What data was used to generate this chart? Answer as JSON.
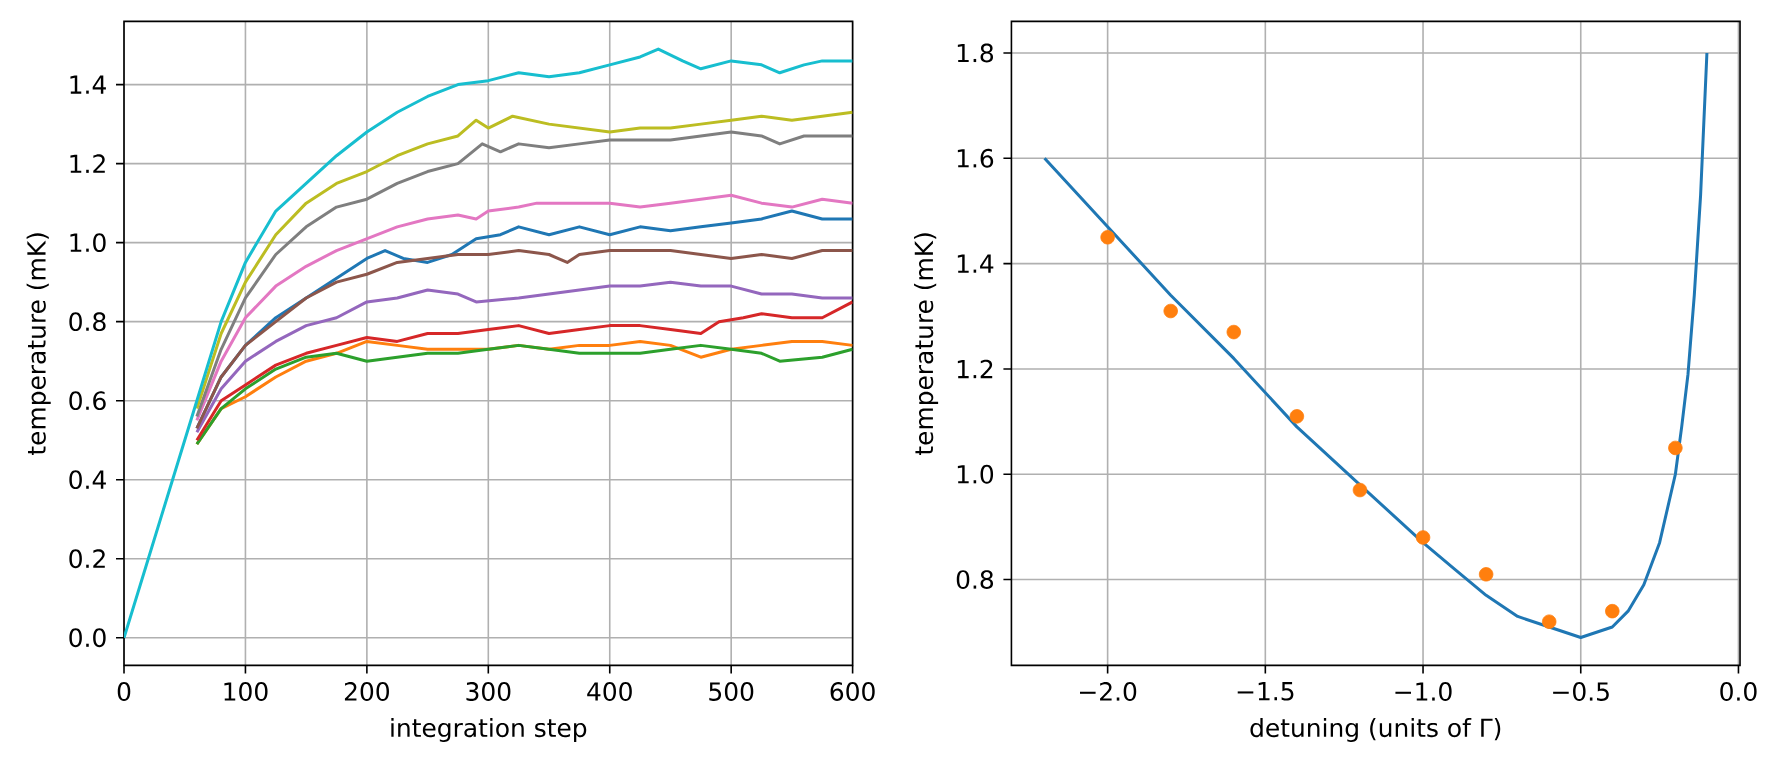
{
  "chart_data": [
    {
      "type": "line",
      "xlabel": "integration step",
      "ylabel": "temperature (mK)",
      "xlim": [
        0,
        600
      ],
      "ylim": [
        -0.07,
        1.56
      ],
      "grid": true,
      "xticks": [
        0,
        100,
        200,
        300,
        400,
        500,
        600
      ],
      "yticks": [
        {
          "value": 0,
          "label": "0.0"
        },
        {
          "value": 0.2,
          "label": "0.2"
        },
        {
          "value": 0.4,
          "label": "0.4"
        },
        {
          "value": 0.6,
          "label": "0.6"
        },
        {
          "value": 0.8,
          "label": "0.8"
        },
        {
          "value": 1.0,
          "label": "1.0"
        },
        {
          "value": 1.2,
          "label": "1.2"
        },
        {
          "value": 1.4,
          "label": "1.4"
        }
      ],
      "series": [
        {
          "color": "#1f77b4",
          "x": [
            60,
            80,
            100,
            125,
            150,
            175,
            200,
            215,
            230,
            250,
            270,
            290,
            310,
            325,
            350,
            375,
            400,
            425,
            450,
            475,
            500,
            525,
            550,
            575,
            600
          ],
          "values": [
            0.53,
            0.66,
            0.74,
            0.81,
            0.86,
            0.91,
            0.96,
            0.98,
            0.96,
            0.95,
            0.97,
            1.01,
            1.02,
            1.04,
            1.02,
            1.04,
            1.02,
            1.04,
            1.03,
            1.04,
            1.05,
            1.06,
            1.08,
            1.06,
            1.06
          ]
        },
        {
          "color": "#ff7f0e",
          "x": [
            60,
            80,
            100,
            125,
            150,
            175,
            200,
            225,
            250,
            275,
            300,
            325,
            350,
            375,
            400,
            425,
            450,
            475,
            500,
            525,
            550,
            575,
            600
          ],
          "values": [
            0.49,
            0.58,
            0.61,
            0.66,
            0.7,
            0.72,
            0.75,
            0.74,
            0.73,
            0.73,
            0.73,
            0.74,
            0.73,
            0.74,
            0.74,
            0.75,
            0.74,
            0.71,
            0.73,
            0.74,
            0.75,
            0.75,
            0.74
          ]
        },
        {
          "color": "#2ca02c",
          "x": [
            60,
            80,
            100,
            125,
            150,
            175,
            200,
            225,
            250,
            275,
            300,
            325,
            350,
            375,
            400,
            425,
            450,
            475,
            500,
            525,
            540,
            575,
            600
          ],
          "values": [
            0.49,
            0.58,
            0.63,
            0.68,
            0.71,
            0.72,
            0.7,
            0.71,
            0.72,
            0.72,
            0.73,
            0.74,
            0.73,
            0.72,
            0.72,
            0.72,
            0.73,
            0.74,
            0.73,
            0.72,
            0.7,
            0.71,
            0.73
          ]
        },
        {
          "color": "#d62728",
          "x": [
            60,
            80,
            100,
            125,
            150,
            175,
            200,
            225,
            250,
            275,
            300,
            325,
            350,
            375,
            400,
            425,
            450,
            475,
            490,
            510,
            525,
            550,
            575,
            600
          ],
          "values": [
            0.5,
            0.6,
            0.64,
            0.69,
            0.72,
            0.74,
            0.76,
            0.75,
            0.77,
            0.77,
            0.78,
            0.79,
            0.77,
            0.78,
            0.79,
            0.79,
            0.78,
            0.77,
            0.8,
            0.81,
            0.82,
            0.81,
            0.81,
            0.85
          ]
        },
        {
          "color": "#9467bd",
          "x": [
            60,
            80,
            100,
            125,
            150,
            175,
            200,
            225,
            250,
            275,
            290,
            325,
            350,
            375,
            400,
            425,
            450,
            475,
            500,
            525,
            550,
            575,
            600
          ],
          "values": [
            0.52,
            0.63,
            0.7,
            0.75,
            0.79,
            0.81,
            0.85,
            0.86,
            0.88,
            0.87,
            0.85,
            0.86,
            0.87,
            0.88,
            0.89,
            0.89,
            0.9,
            0.89,
            0.89,
            0.87,
            0.87,
            0.86,
            0.86
          ]
        },
        {
          "color": "#8c564b",
          "x": [
            60,
            80,
            100,
            125,
            150,
            175,
            200,
            225,
            250,
            275,
            300,
            325,
            350,
            365,
            375,
            400,
            425,
            450,
            475,
            500,
            525,
            550,
            575,
            600
          ],
          "values": [
            0.53,
            0.66,
            0.74,
            0.8,
            0.86,
            0.9,
            0.92,
            0.95,
            0.96,
            0.97,
            0.97,
            0.98,
            0.97,
            0.95,
            0.97,
            0.98,
            0.98,
            0.98,
            0.97,
            0.96,
            0.97,
            0.96,
            0.98,
            0.98
          ]
        },
        {
          "color": "#e377c2",
          "x": [
            60,
            80,
            100,
            125,
            150,
            175,
            200,
            225,
            250,
            275,
            290,
            300,
            325,
            340,
            375,
            400,
            425,
            450,
            475,
            500,
            525,
            550,
            575,
            600
          ],
          "values": [
            0.55,
            0.7,
            0.81,
            0.89,
            0.94,
            0.98,
            1.01,
            1.04,
            1.06,
            1.07,
            1.06,
            1.08,
            1.09,
            1.1,
            1.1,
            1.1,
            1.09,
            1.1,
            1.11,
            1.12,
            1.1,
            1.09,
            1.11,
            1.1
          ]
        },
        {
          "color": "#7f7f7f",
          "x": [
            60,
            80,
            100,
            125,
            150,
            175,
            200,
            225,
            250,
            275,
            295,
            310,
            325,
            350,
            375,
            400,
            425,
            450,
            475,
            500,
            525,
            540,
            560,
            600
          ],
          "values": [
            0.56,
            0.73,
            0.86,
            0.97,
            1.04,
            1.09,
            1.11,
            1.15,
            1.18,
            1.2,
            1.25,
            1.23,
            1.25,
            1.24,
            1.25,
            1.26,
            1.26,
            1.26,
            1.27,
            1.28,
            1.27,
            1.25,
            1.27,
            1.27
          ]
        },
        {
          "color": "#bcbd22",
          "x": [
            60,
            80,
            100,
            125,
            150,
            175,
            200,
            225,
            250,
            275,
            290,
            300,
            320,
            350,
            375,
            400,
            425,
            450,
            475,
            500,
            525,
            550,
            575,
            600
          ],
          "values": [
            0.58,
            0.77,
            0.9,
            1.02,
            1.1,
            1.15,
            1.18,
            1.22,
            1.25,
            1.27,
            1.31,
            1.29,
            1.32,
            1.3,
            1.29,
            1.28,
            1.29,
            1.29,
            1.3,
            1.31,
            1.32,
            1.31,
            1.32,
            1.33
          ]
        },
        {
          "color": "#17becf",
          "x": [
            0,
            20,
            40,
            60,
            80,
            100,
            125,
            150,
            175,
            200,
            225,
            250,
            275,
            300,
            325,
            350,
            375,
            400,
            425,
            440,
            460,
            475,
            500,
            525,
            540,
            560,
            575,
            600
          ],
          "values": [
            0,
            0.2,
            0.4,
            0.6,
            0.8,
            0.95,
            1.08,
            1.15,
            1.22,
            1.28,
            1.33,
            1.37,
            1.4,
            1.41,
            1.43,
            1.42,
            1.43,
            1.45,
            1.47,
            1.49,
            1.46,
            1.44,
            1.46,
            1.45,
            1.43,
            1.45,
            1.46,
            1.46
          ]
        }
      ]
    },
    {
      "type": "line",
      "xlabel": "detuning (units of Γ)",
      "ylabel": "temperature (mK)",
      "xlim": [
        -2.305,
        0.005
      ],
      "ylim": [
        0.637,
        1.86
      ],
      "grid": true,
      "xticks": [
        {
          "value": -2.0,
          "label": "−2.0"
        },
        {
          "value": -1.5,
          "label": "−1.5"
        },
        {
          "value": -1.0,
          "label": "−1.0"
        },
        {
          "value": -0.5,
          "label": "−0.5"
        },
        {
          "value": 0.0,
          "label": "0.0"
        }
      ],
      "yticks": [
        {
          "value": 0.8,
          "label": "0.8"
        },
        {
          "value": 1.0,
          "label": "1.0"
        },
        {
          "value": 1.2,
          "label": "1.2"
        },
        {
          "value": 1.4,
          "label": "1.4"
        },
        {
          "value": 1.6,
          "label": "1.6"
        },
        {
          "value": 1.8,
          "label": "1.8"
        }
      ],
      "series": [
        {
          "type": "line",
          "color": "#1f77b4",
          "x": [
            -2.2,
            -2.0,
            -1.8,
            -1.6,
            -1.4,
            -1.2,
            -1.0,
            -0.9,
            -0.8,
            -0.7,
            -0.6,
            -0.5,
            -0.45,
            -0.4,
            -0.35,
            -0.3,
            -0.25,
            -0.2,
            -0.18,
            -0.16,
            -0.14,
            -0.12,
            -0.1
          ],
          "values": [
            1.6,
            1.47,
            1.34,
            1.22,
            1.09,
            0.98,
            0.87,
            0.82,
            0.77,
            0.73,
            0.71,
            0.69,
            0.7,
            0.71,
            0.74,
            0.79,
            0.87,
            1.0,
            1.09,
            1.19,
            1.34,
            1.53,
            1.8
          ]
        },
        {
          "type": "scatter",
          "marker": "circle",
          "color": "#ff7f0e",
          "x": [
            -2.0,
            -1.8,
            -1.6,
            -1.4,
            -1.2,
            -1.0,
            -0.8,
            -0.6,
            -0.4,
            -0.2
          ],
          "values": [
            1.45,
            1.31,
            1.27,
            1.11,
            0.97,
            0.88,
            0.81,
            0.72,
            0.74,
            1.05
          ]
        }
      ]
    }
  ]
}
